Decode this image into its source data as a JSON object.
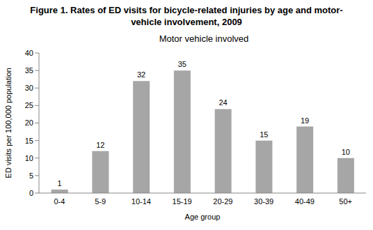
{
  "chart_data": {
    "type": "bar",
    "title": "Figure 1. Rates of ED visits for bicycle-related injuries by age and motor-vehicle involvement, 2009",
    "subtitle": "Motor vehicle involved",
    "x_label": "Age group",
    "y_label": "ED visits per 100,000 population",
    "categories": [
      "0-4",
      "5-9",
      "10-14",
      "15-19",
      "20-29",
      "30-39",
      "40-49",
      "50+"
    ],
    "values": [
      1,
      12,
      32,
      35,
      24,
      15,
      19,
      10
    ],
    "color": "#a6a6a6",
    "ylim": [
      0,
      40
    ],
    "yticks": [
      0,
      5,
      10,
      15,
      20,
      25,
      30,
      35,
      40
    ],
    "grid": false,
    "data_labels": true
  }
}
